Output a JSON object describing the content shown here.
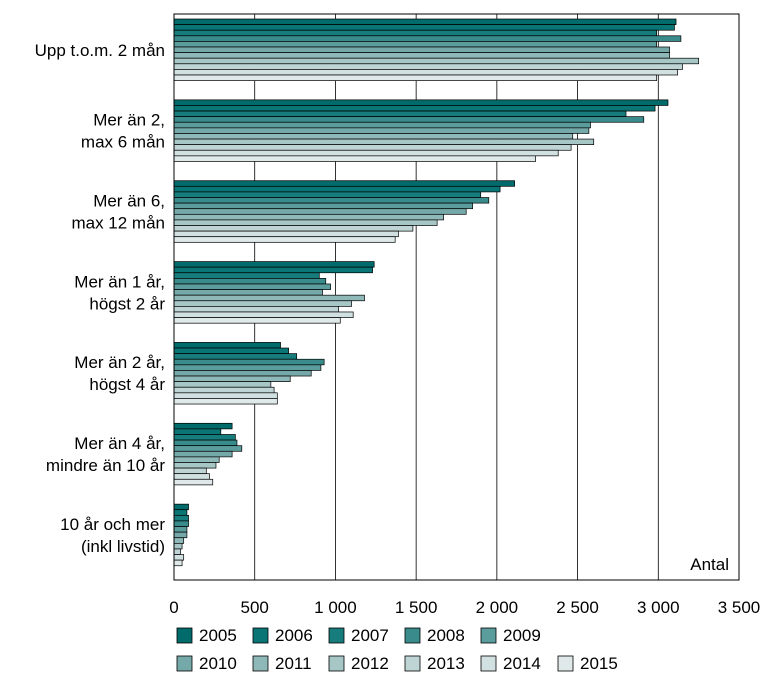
{
  "chart_data": {
    "type": "bar",
    "orientation": "horizontal",
    "categories": [
      [
        "Upp t.o.m. 2 mån"
      ],
      [
        "Mer än 2,",
        "max 6 mån"
      ],
      [
        "Mer än 6,",
        "max 12 mån"
      ],
      [
        "Mer än 1 år,",
        "högst 2 år"
      ],
      [
        "Mer än 2 år,",
        "högst 4 år"
      ],
      [
        "Mer än 4 år,",
        "mindre än 10 år"
      ],
      [
        "10 år och mer",
        "(inkl livstid)"
      ]
    ],
    "series": [
      {
        "name": "2005",
        "color": "#006b6b",
        "values": [
          3110,
          3060,
          2110,
          1240,
          660,
          360,
          90
        ]
      },
      {
        "name": "2006",
        "color": "#0a7575",
        "values": [
          3100,
          2980,
          2020,
          1230,
          710,
          290,
          80
        ]
      },
      {
        "name": "2007",
        "color": "#167c7c",
        "values": [
          2990,
          2800,
          1900,
          900,
          760,
          380,
          90
        ]
      },
      {
        "name": "2008",
        "color": "#3a8c8c",
        "values": [
          3140,
          2910,
          1950,
          940,
          930,
          390,
          90
        ]
      },
      {
        "name": "2009",
        "color": "#5b9c9c",
        "values": [
          2990,
          2580,
          1850,
          970,
          910,
          420,
          80
        ]
      },
      {
        "name": "2010",
        "color": "#75a9a9",
        "values": [
          3070,
          2570,
          1810,
          920,
          850,
          360,
          80
        ]
      },
      {
        "name": "2011",
        "color": "#8fb8b8",
        "values": [
          3070,
          2470,
          1670,
          1180,
          720,
          280,
          60
        ]
      },
      {
        "name": "2012",
        "color": "#a7c6c6",
        "values": [
          3250,
          2600,
          1630,
          1100,
          600,
          260,
          50
        ]
      },
      {
        "name": "2013",
        "color": "#bfd5d5",
        "values": [
          3150,
          2460,
          1480,
          1020,
          620,
          200,
          40
        ]
      },
      {
        "name": "2014",
        "color": "#d1e0e0",
        "values": [
          3120,
          2380,
          1390,
          1110,
          640,
          220,
          60
        ]
      },
      {
        "name": "2015",
        "color": "#dfe9e9",
        "values": [
          2990,
          2240,
          1370,
          1030,
          640,
          240,
          50
        ]
      }
    ],
    "x_ticks": [
      "0",
      "500",
      "1 000",
      "1 500",
      "2 000",
      "2 500",
      "3 000",
      "3 500"
    ],
    "xlim": [
      0,
      3500
    ],
    "xlabel": "Antal",
    "grid": true,
    "legend_position": "bottom"
  }
}
